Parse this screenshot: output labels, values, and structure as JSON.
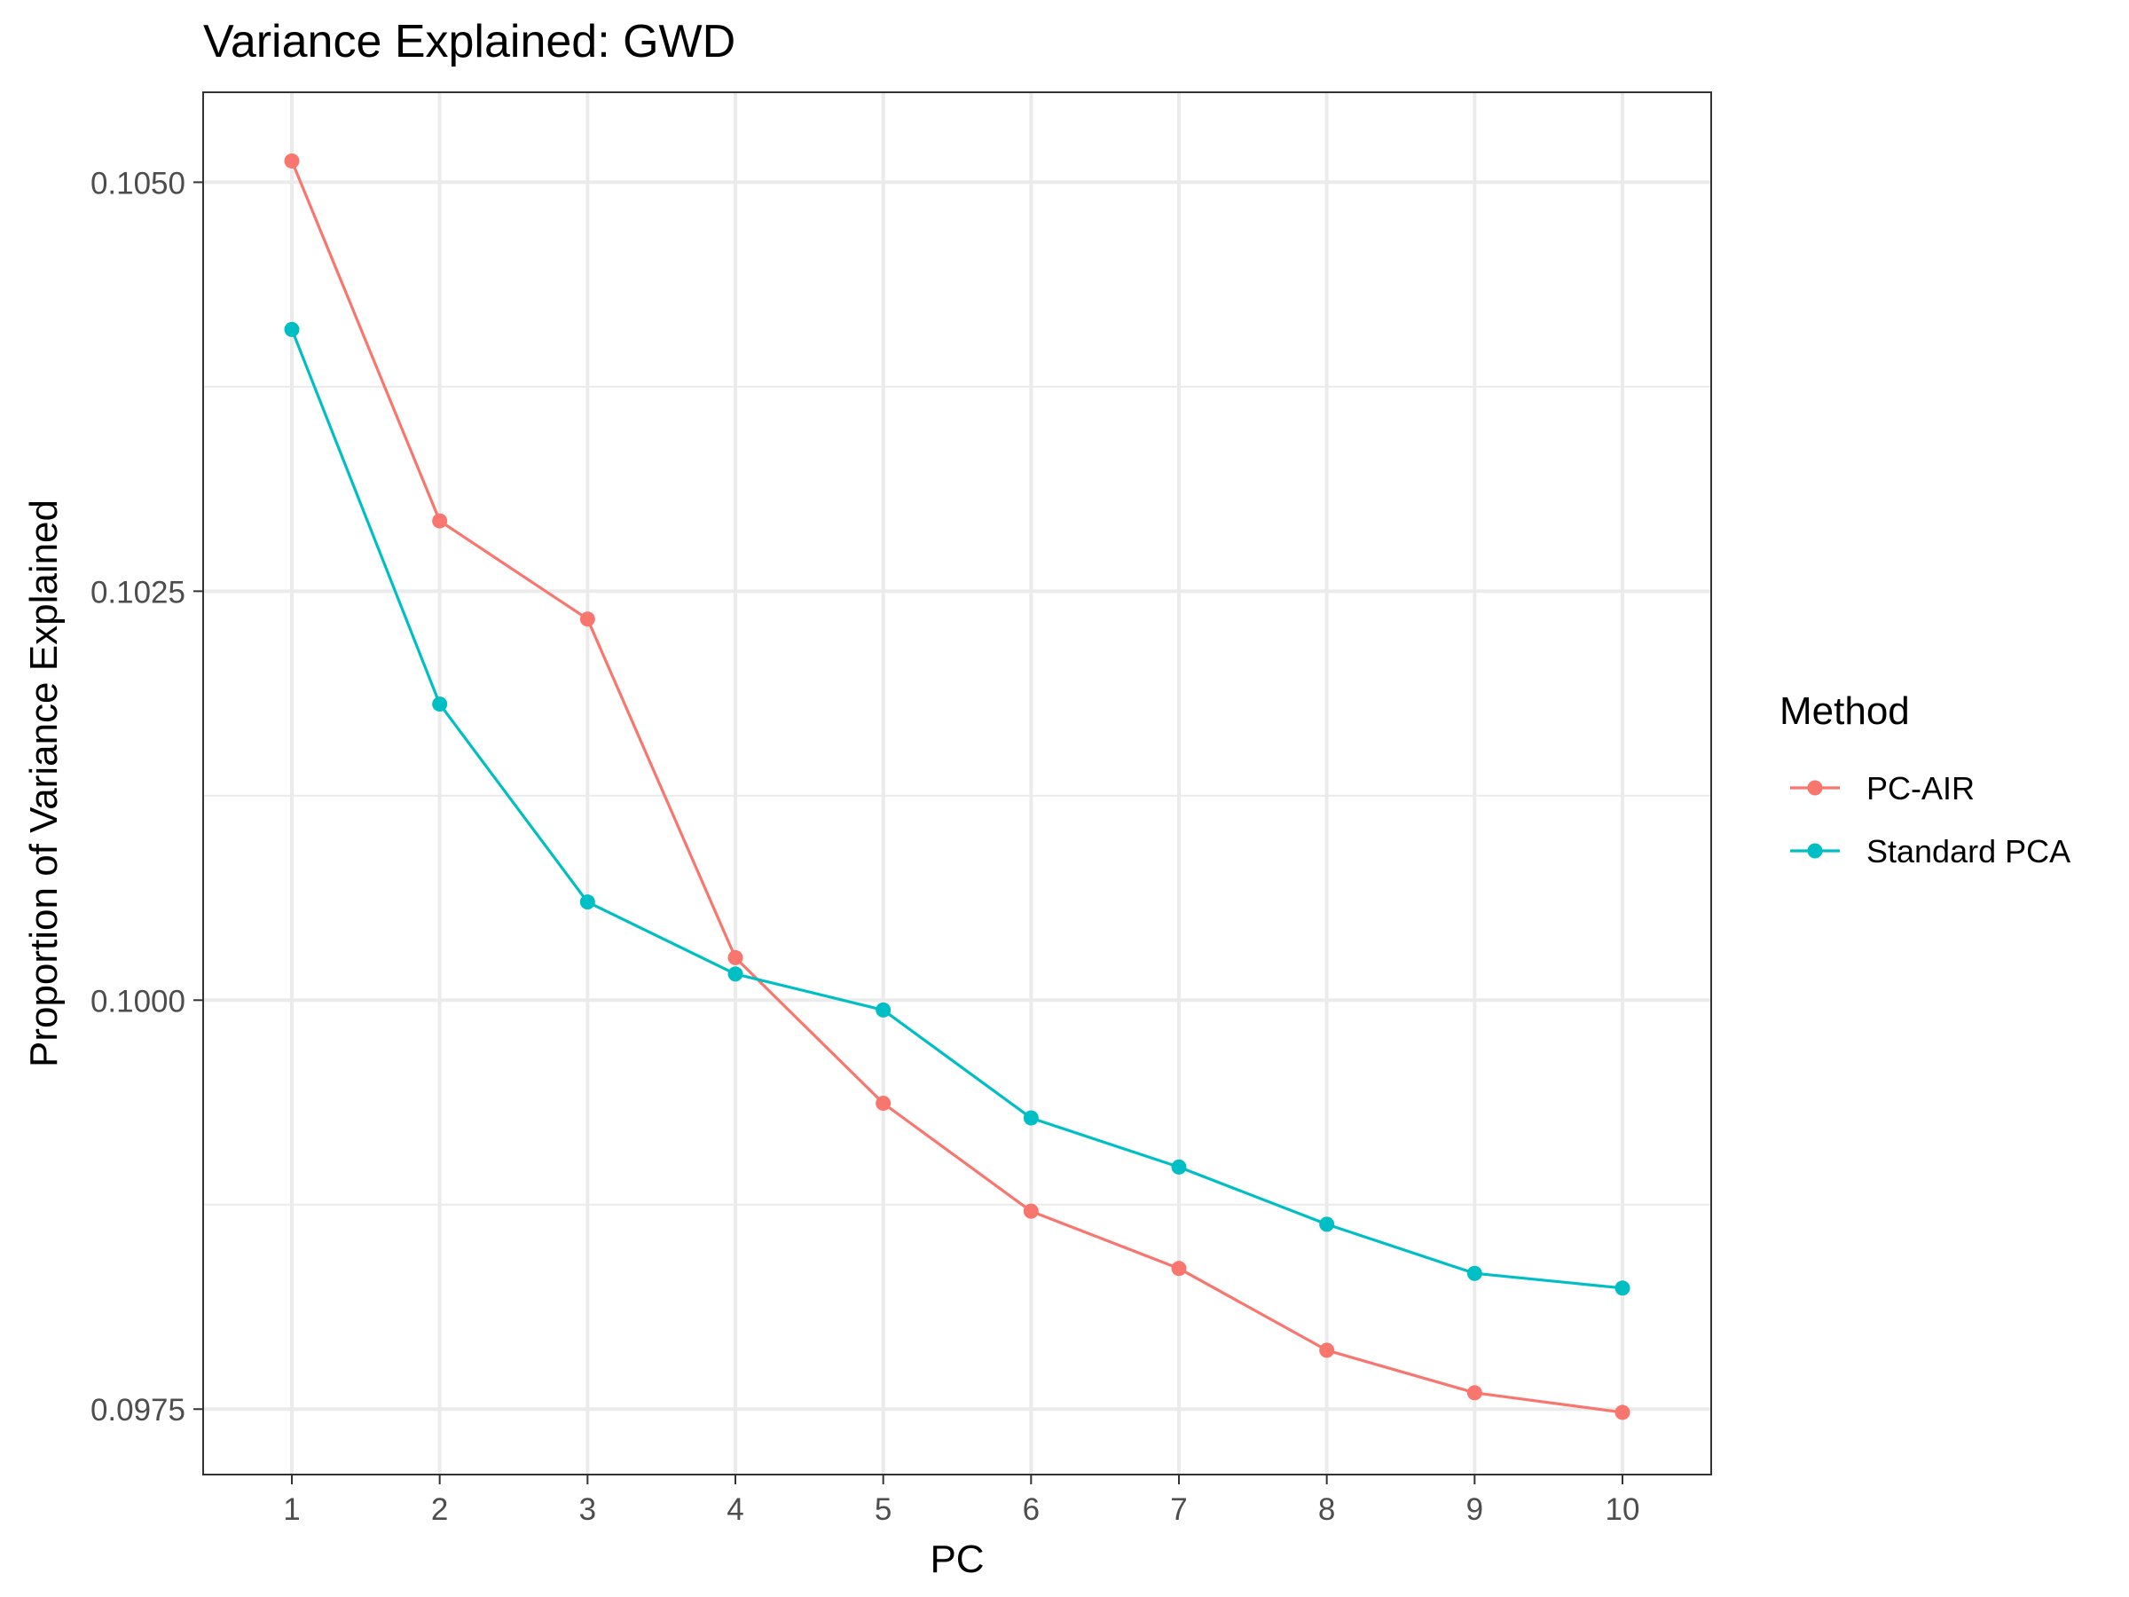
{
  "chart_data": {
    "type": "line",
    "title": "Variance Explained: GWD",
    "xlabel": "PC",
    "ylabel": "Proportion of Variance Explained",
    "x": [
      1,
      2,
      3,
      4,
      5,
      6,
      7,
      8,
      9,
      10
    ],
    "xticks": [
      "1",
      "2",
      "3",
      "4",
      "5",
      "6",
      "7",
      "8",
      "9",
      "10"
    ],
    "xlim": [
      0.4,
      10.6
    ],
    "yticks": [
      {
        "value": 0.0975,
        "label": "0.0975"
      },
      {
        "value": 0.1,
        "label": "0.1000"
      },
      {
        "value": 0.1025,
        "label": "0.1025"
      },
      {
        "value": 0.105,
        "label": "0.1050"
      }
    ],
    "yminor": [
      0.09875,
      0.10125,
      0.10375
    ],
    "ylim": [
      0.0971,
      0.10555
    ],
    "grid": true,
    "legend": {
      "title": "Method",
      "position": "right"
    },
    "series": [
      {
        "name": "PC-AIR",
        "color": "#F8766D",
        "values": [
          0.10513,
          0.10293,
          0.10233,
          0.10026,
          0.09937,
          0.09871,
          0.09836,
          0.09786,
          0.0976,
          0.09748
        ]
      },
      {
        "name": "Standard PCA",
        "color": "#00BFC4",
        "values": [
          0.1041,
          0.10181,
          0.1006,
          0.10016,
          0.09994,
          0.09928,
          0.09898,
          0.09863,
          0.09833,
          0.09824
        ]
      }
    ]
  }
}
